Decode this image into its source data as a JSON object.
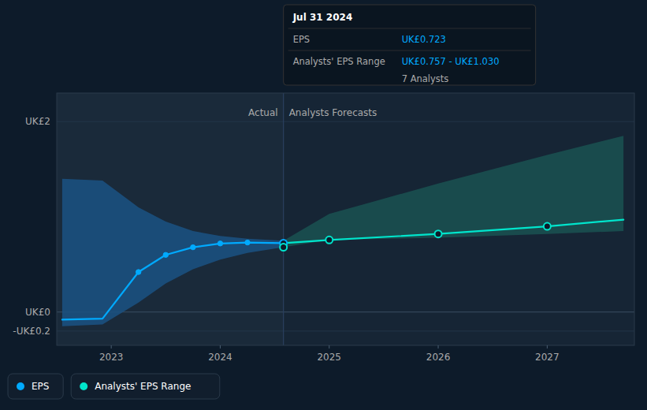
{
  "chart_data": {
    "type": "line",
    "xlim": [
      2022.5,
      2027.8
    ],
    "xticks": [
      2023,
      2024,
      2025,
      2026,
      2027
    ],
    "ylim": [
      -0.35,
      2.3
    ],
    "yticks": [
      {
        "value": -0.2,
        "label": "-UK£0.2"
      },
      {
        "value": 0,
        "label": "UK£0"
      },
      {
        "value": 2.0,
        "label": "UK£2"
      }
    ],
    "grid": "y",
    "legend": "lower left",
    "regions": [
      {
        "label": "Actual",
        "x": [
          2022.5,
          2024.58
        ],
        "color": "#1a2a3a"
      },
      {
        "label": "Analysts Forecasts",
        "x": [
          2024.58,
          2027.8
        ],
        "color": "#162535"
      }
    ],
    "series": [
      {
        "name": "EPS",
        "type": "line",
        "color": "#00aaff",
        "x": [
          2022.55,
          2022.92,
          2023.25,
          2023.5,
          2023.75,
          2024.0,
          2024.25,
          2024.58
        ],
        "values": [
          -0.08,
          -0.07,
          0.42,
          0.6,
          0.68,
          0.72,
          0.73,
          0.723
        ]
      },
      {
        "name": "Analysts' EPS Range",
        "type": "line",
        "color": "#00e5cc",
        "x": [
          2024.58,
          2025.0,
          2026.0,
          2027.0,
          2027.7
        ],
        "values": [
          0.723,
          0.757,
          0.82,
          0.9,
          0.97
        ]
      },
      {
        "type": "scatter",
        "color": "#00aaff",
        "marker": "circle",
        "x": [
          2023.25,
          2023.5,
          2023.75,
          2024.0,
          2024.25
        ],
        "values": [
          0.42,
          0.6,
          0.68,
          0.72,
          0.73
        ]
      },
      {
        "type": "scatter",
        "color": "#00aaff",
        "marker": "circle-open",
        "x": [
          2024.58
        ],
        "values": [
          0.723
        ]
      },
      {
        "type": "scatter",
        "color": "#00e5cc",
        "marker": "circle-open",
        "x": [
          2024.58,
          2025.0,
          2026.0,
          2027.0
        ],
        "values": [
          0.68,
          0.757,
          0.82,
          0.9
        ]
      },
      {
        "type": "band",
        "color": "#1b5080",
        "x": [
          2022.55,
          2022.92,
          2023.25,
          2023.5,
          2023.75,
          2024.0,
          2024.25,
          2024.58
        ],
        "upper": [
          1.4,
          1.38,
          1.1,
          0.95,
          0.85,
          0.8,
          0.77,
          0.75
        ],
        "lower": [
          -0.15,
          -0.13,
          0.1,
          0.3,
          0.45,
          0.55,
          0.62,
          0.68
        ]
      },
      {
        "type": "band",
        "color": "#1a5050",
        "x": [
          2024.58,
          2025.0,
          2026.0,
          2027.0,
          2027.7
        ],
        "upper": [
          0.75,
          1.03,
          1.35,
          1.65,
          1.85
        ],
        "lower": [
          0.68,
          0.757,
          0.78,
          0.82,
          0.85
        ]
      }
    ],
    "tooltip": {
      "title": "Jul 31 2024",
      "rows": [
        {
          "label": "EPS",
          "value": "UK£0.723"
        },
        {
          "label": "Analysts' EPS Range",
          "value": "UK£0.757 - UK£1.030"
        }
      ],
      "note": "7 Analysts",
      "color": "#00aaff"
    }
  }
}
